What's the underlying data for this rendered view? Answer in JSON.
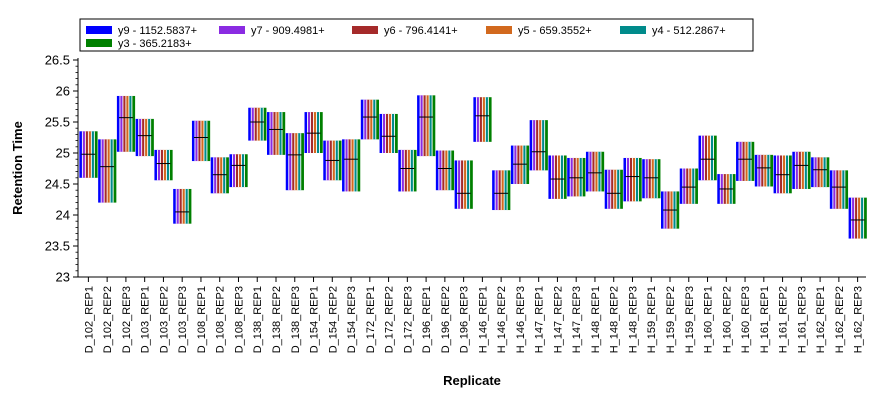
{
  "chart_data": {
    "type": "box",
    "xlabel": "Replicate",
    "ylabel": "Retention Time",
    "ylim": [
      23,
      26.5
    ],
    "yticks": [
      23,
      23.5,
      24,
      24.5,
      25,
      25.5,
      26,
      26.5
    ],
    "ytick_labels": [
      "23",
      "23.5",
      "24",
      "24.5",
      "25",
      "25.5",
      "26",
      "26.5"
    ],
    "grid": false,
    "legend_position": "top",
    "series": [
      {
        "name": "y9 - 1152.5837+",
        "color": "#0000FF"
      },
      {
        "name": "y7 - 909.4981+",
        "color": "#8A2BE2"
      },
      {
        "name": "y6 - 796.4141+",
        "color": "#A52A2A"
      },
      {
        "name": "y5 - 659.3552+",
        "color": "#D2691E"
      },
      {
        "name": "y4 - 512.2867+",
        "color": "#008B8B"
      },
      {
        "name": "y3 - 365.2183+",
        "color": "#008000"
      }
    ],
    "categories": [
      "D_102_REP1",
      "D_102_REP2",
      "D_102_REP3",
      "D_103_REP1",
      "D_103_REP2",
      "D_103_REP3",
      "D_108_REP1",
      "D_108_REP2",
      "D_108_REP3",
      "D_138_REP1",
      "D_138_REP2",
      "D_138_REP3",
      "D_154_REP1",
      "D_154_REP2",
      "D_154_REP3",
      "D_172_REP1",
      "D_172_REP2",
      "D_172_REP3",
      "D_196_REP1",
      "D_196_REP2",
      "D_196_REP3",
      "H_146_REP1",
      "H_146_REP2",
      "H_146_REP3",
      "H_147_REP1",
      "H_147_REP2",
      "H_147_REP3",
      "H_148_REP1",
      "H_148_REP2",
      "H_148_REP3",
      "H_159_REP1",
      "H_159_REP2",
      "H_159_REP3",
      "H_160_REP1",
      "H_160_REP2",
      "H_160_REP3",
      "H_161_REP1",
      "H_161_REP2",
      "H_161_REP3",
      "H_162_REP1",
      "H_162_REP2",
      "H_162_REP3"
    ],
    "ranges": [
      {
        "min": 24.6,
        "max": 25.35,
        "median": 24.98
      },
      {
        "min": 24.2,
        "max": 25.22,
        "median": 24.78
      },
      {
        "min": 25.02,
        "max": 25.92,
        "median": 25.57
      },
      {
        "min": 24.95,
        "max": 25.55,
        "median": 25.28
      },
      {
        "min": 24.56,
        "max": 25.05,
        "median": 24.83
      },
      {
        "min": 23.86,
        "max": 24.42,
        "median": 24.05
      },
      {
        "min": 24.87,
        "max": 25.52,
        "median": 25.25
      },
      {
        "min": 24.35,
        "max": 24.93,
        "median": 24.65
      },
      {
        "min": 24.45,
        "max": 24.98,
        "median": 24.8
      },
      {
        "min": 25.2,
        "max": 25.73,
        "median": 25.5
      },
      {
        "min": 24.97,
        "max": 25.66,
        "median": 25.38
      },
      {
        "min": 24.4,
        "max": 25.32,
        "median": 24.97
      },
      {
        "min": 25.0,
        "max": 25.66,
        "median": 25.32
      },
      {
        "min": 24.56,
        "max": 25.2,
        "median": 24.88
      },
      {
        "min": 24.38,
        "max": 25.22,
        "median": 24.9
      },
      {
        "min": 25.22,
        "max": 25.86,
        "median": 25.58
      },
      {
        "min": 25.0,
        "max": 25.63,
        "median": 25.27
      },
      {
        "min": 24.38,
        "max": 25.05,
        "median": 24.75
      },
      {
        "min": 24.95,
        "max": 25.93,
        "median": 25.58
      },
      {
        "min": 24.4,
        "max": 25.04,
        "median": 24.75
      },
      {
        "min": 24.1,
        "max": 24.88,
        "median": 24.35
      },
      {
        "min": 25.18,
        "max": 25.9,
        "median": 25.6
      },
      {
        "min": 24.08,
        "max": 24.72,
        "median": 24.35
      },
      {
        "min": 24.5,
        "max": 25.12,
        "median": 24.82
      },
      {
        "min": 24.72,
        "max": 25.53,
        "median": 25.02
      },
      {
        "min": 24.26,
        "max": 24.96,
        "median": 24.58
      },
      {
        "min": 24.3,
        "max": 24.92,
        "median": 24.6
      },
      {
        "min": 24.38,
        "max": 25.02,
        "median": 24.68
      },
      {
        "min": 24.1,
        "max": 24.73,
        "median": 24.35
      },
      {
        "min": 24.22,
        "max": 24.92,
        "median": 24.62
      },
      {
        "min": 24.27,
        "max": 24.9,
        "median": 24.6
      },
      {
        "min": 23.78,
        "max": 24.38,
        "median": 24.08
      },
      {
        "min": 24.18,
        "max": 24.75,
        "median": 24.45
      },
      {
        "min": 24.56,
        "max": 25.28,
        "median": 24.9
      },
      {
        "min": 24.18,
        "max": 24.66,
        "median": 24.42
      },
      {
        "min": 24.55,
        "max": 25.18,
        "median": 24.9
      },
      {
        "min": 24.46,
        "max": 24.97,
        "median": 24.76
      },
      {
        "min": 24.35,
        "max": 24.96,
        "median": 24.65
      },
      {
        "min": 24.42,
        "max": 25.02,
        "median": 24.8
      },
      {
        "min": 24.45,
        "max": 24.93,
        "median": 24.73
      },
      {
        "min": 24.1,
        "max": 24.72,
        "median": 24.45
      },
      {
        "min": 23.62,
        "max": 24.28,
        "median": 23.92
      }
    ]
  }
}
